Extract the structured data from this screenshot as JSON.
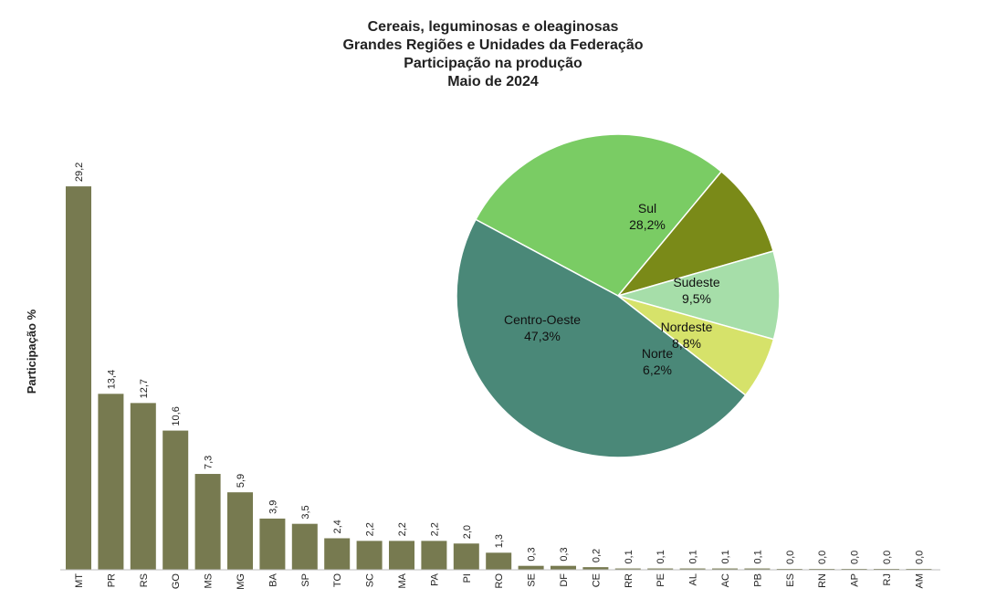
{
  "title_lines": [
    "Cereais, leguminosas e oleaginosas",
    "Grandes Regiões e Unidades da Federação",
    "Participação na produção",
    "Maio de 2024"
  ],
  "chart_data": [
    {
      "type": "bar",
      "ylabel": "Participação %",
      "categories": [
        "MT",
        "PR",
        "RS",
        "GO",
        "MS",
        "MG",
        "BA",
        "SP",
        "TO",
        "SC",
        "MA",
        "PA",
        "PI",
        "RO",
        "SE",
        "DF",
        "CE",
        "RR",
        "PE",
        "AL",
        "AC",
        "PB",
        "ES",
        "RN",
        "AP",
        "RJ",
        "AM"
      ],
      "values": [
        29.2,
        13.4,
        12.7,
        10.6,
        7.3,
        5.9,
        3.9,
        3.5,
        2.4,
        2.2,
        2.2,
        2.2,
        2.0,
        1.3,
        0.3,
        0.3,
        0.2,
        0.1,
        0.1,
        0.1,
        0.1,
        0.1,
        0.0,
        0.0,
        0.0,
        0.0,
        0.0
      ],
      "value_labels": [
        "29,2",
        "13,4",
        "12,7",
        "10,6",
        "7,3",
        "5,9",
        "3,9",
        "3,5",
        "2,4",
        "2,2",
        "2,2",
        "2,2",
        "2,0",
        "1,3",
        "0,3",
        "0,3",
        "0,2",
        "0,1",
        "0,1",
        "0,1",
        "0,1",
        "0,1",
        "0,0",
        "0,0",
        "0,0",
        "0,0",
        "0,0"
      ],
      "color": "#777a50",
      "grid": false
    },
    {
      "type": "pie",
      "slices": [
        {
          "name": "Sul",
          "value": 28.2,
          "label": "28,2%",
          "color": "#7acc64"
        },
        {
          "name": "Sudeste",
          "value": 9.5,
          "label": "9,5%",
          "color": "#7a8a18"
        },
        {
          "name": "Nordeste",
          "value": 8.8,
          "label": "8,8%",
          "color": "#a6dea9"
        },
        {
          "name": "Norte",
          "value": 6.2,
          "label": "6,2%",
          "color": "#d6e26a"
        },
        {
          "name": "Centro-Oeste",
          "value": 47.3,
          "label": "47,3%",
          "color": "#4a8878"
        }
      ]
    }
  ]
}
